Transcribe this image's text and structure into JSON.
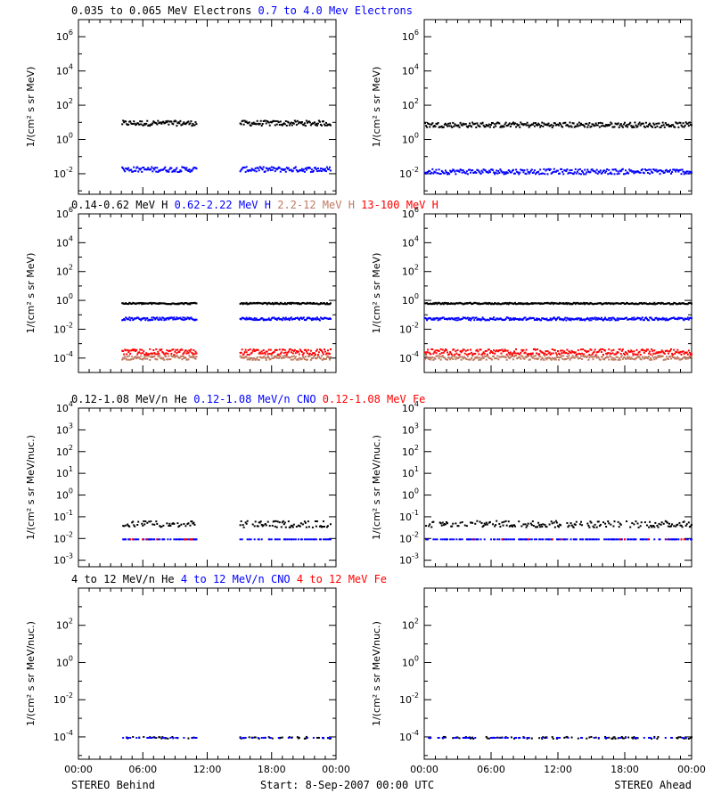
{
  "colors": {
    "black": "#000000",
    "blue": "#0000ff",
    "salmon": "#c07a60",
    "red": "#ff0000"
  },
  "rows": [
    {
      "legend": [
        {
          "text": "0.035 to 0.065 MeV Electrons",
          "color": "#000000"
        },
        {
          "text": "0.7 to 4.0 Mev Electrons",
          "color": "#0000ff"
        }
      ],
      "ylabel": "1/(cm² s sr MeV)",
      "scale": "log",
      "ylim_log": [
        -3.2,
        7
      ],
      "ticks": [
        {
          "base": "10",
          "exp": "6",
          "v": 6
        },
        {
          "base": "10",
          "exp": "4",
          "v": 4
        },
        {
          "base": "10",
          "exp": "2",
          "v": 2
        },
        {
          "base": "10",
          "exp": "0",
          "v": 0
        },
        {
          "base": "10",
          "exp": "-2",
          "v": -2
        }
      ]
    },
    {
      "legend": [
        {
          "text": "0.14-0.62 MeV H",
          "color": "#000000"
        },
        {
          "text": "0.62-2.22 MeV H",
          "color": "#0000ff"
        },
        {
          "text": "2.2-12 MeV H",
          "color": "#c07a60"
        },
        {
          "text": "13-100 MeV H",
          "color": "#ff0000"
        }
      ],
      "ylabel": "1/(cm² s sr MeV)",
      "scale": "log",
      "ylim_log": [
        -5,
        6
      ],
      "ticks": [
        {
          "base": "10",
          "exp": "6",
          "v": 6
        },
        {
          "base": "10",
          "exp": "4",
          "v": 4
        },
        {
          "base": "10",
          "exp": "2",
          "v": 2
        },
        {
          "base": "10",
          "exp": "0",
          "v": 0
        },
        {
          "base": "10",
          "exp": "-2",
          "v": -2
        },
        {
          "base": "10",
          "exp": "-4",
          "v": -4
        }
      ]
    },
    {
      "legend": [
        {
          "text": "0.12-1.08 MeV/n He",
          "color": "#000000"
        },
        {
          "text": "0.12-1.08 MeV/n CNO",
          "color": "#0000ff"
        },
        {
          "text": "0.12-1.08 MeV Fe",
          "color": "#ff0000"
        }
      ],
      "ylabel": "1/(cm² s sr MeV/nuc.)",
      "scale": "log",
      "ylim_log": [
        -3.3,
        4
      ],
      "ticks": [
        {
          "base": "10",
          "exp": "4",
          "v": 4
        },
        {
          "base": "10",
          "exp": "3",
          "v": 3
        },
        {
          "base": "10",
          "exp": "2",
          "v": 2
        },
        {
          "base": "10",
          "exp": "1",
          "v": 1
        },
        {
          "base": "10",
          "exp": "0",
          "v": 0
        },
        {
          "base": "10",
          "exp": "-1",
          "v": -1
        },
        {
          "base": "10",
          "exp": "-2",
          "v": -2
        },
        {
          "base": "10",
          "exp": "-3",
          "v": -3
        }
      ]
    },
    {
      "legend": [
        {
          "text": "4 to 12 MeV/n He",
          "color": "#000000"
        },
        {
          "text": "4 to 12 MeV/n CNO",
          "color": "#0000ff"
        },
        {
          "text": "4 to 12 MeV Fe",
          "color": "#ff0000"
        }
      ],
      "ylabel": "1/(cm² s sr MeV/nuc.)",
      "scale": "log",
      "ylim_log": [
        -5.2,
        4
      ],
      "ticks": [
        {
          "base": "10",
          "exp": "2",
          "v": 2
        },
        {
          "base": "10",
          "exp": "0",
          "v": 0
        },
        {
          "base": "10",
          "exp": "-2",
          "v": -2
        },
        {
          "base": "10",
          "exp": "-4",
          "v": -4
        }
      ]
    }
  ],
  "xaxis": {
    "ticks": [
      "00:00",
      "06:00",
      "12:00",
      "18:00",
      "00:00"
    ],
    "hours": [
      0,
      6,
      12,
      18,
      24
    ],
    "minor_every_hours": 1
  },
  "footer": {
    "left": "STEREO Behind",
    "center": "Start:  8-Sep-2007 00:00 UTC",
    "right": "STEREO Ahead"
  },
  "chart_data": [
    {
      "type": "scatter",
      "panel": "row1-behind",
      "xunit": "hours",
      "ylog": true,
      "series": [
        {
          "name": "0.035 to 0.065 MeV Electrons",
          "color": "#000000",
          "level": 10,
          "spread": 0.15,
          "coverage": [
            [
              4,
              11
            ],
            [
              15,
              23.5
            ]
          ]
        },
        {
          "name": "0.7 to 4.0 Mev Electrons",
          "color": "#0000ff",
          "level": 0.02,
          "spread": 0.15,
          "coverage": [
            [
              4,
              11
            ],
            [
              15,
              23.5
            ]
          ]
        }
      ]
    },
    {
      "type": "scatter",
      "panel": "row1-ahead",
      "xunit": "hours",
      "ylog": true,
      "series": [
        {
          "name": "0.035 to 0.065 MeV Electrons",
          "color": "#000000",
          "level": 8,
          "spread": 0.15,
          "coverage": [
            [
              0,
              24
            ]
          ]
        },
        {
          "name": "0.7 to 4.0 Mev Electrons",
          "color": "#0000ff",
          "level": 0.015,
          "spread": 0.15,
          "coverage": [
            [
              0,
              24
            ]
          ]
        }
      ]
    },
    {
      "type": "scatter",
      "panel": "row2-behind",
      "xunit": "hours",
      "ylog": true,
      "series": [
        {
          "name": "0.14-0.62 MeV H",
          "color": "#000000",
          "level": 0.7,
          "spread": 0.05,
          "coverage": [
            [
              4,
              11
            ],
            [
              15,
              23.5
            ]
          ]
        },
        {
          "name": "0.62-2.22 MeV H",
          "color": "#0000ff",
          "level": 0.06,
          "spread": 0.1,
          "coverage": [
            [
              4,
              11
            ],
            [
              15,
              23.5
            ]
          ]
        },
        {
          "name": "2.2-12 MeV H",
          "color": "#c07a60",
          "level": 0.00012,
          "spread": 0.15,
          "coverage": [
            [
              4,
              11
            ],
            [
              15,
              23.5
            ]
          ]
        },
        {
          "name": "13-100 MeV H",
          "color": "#ff0000",
          "level": 0.0003,
          "spread": 0.2,
          "coverage": [
            [
              4,
              11
            ],
            [
              15,
              23.5
            ]
          ]
        }
      ]
    },
    {
      "type": "scatter",
      "panel": "row2-ahead",
      "xunit": "hours",
      "ylog": true,
      "series": [
        {
          "name": "0.14-0.62 MeV H",
          "color": "#000000",
          "level": 0.7,
          "spread": 0.05,
          "coverage": [
            [
              0,
              24
            ]
          ]
        },
        {
          "name": "0.62-2.22 MeV H",
          "color": "#0000ff",
          "level": 0.06,
          "spread": 0.1,
          "coverage": [
            [
              0,
              24
            ]
          ]
        },
        {
          "name": "2.2-12 MeV H",
          "color": "#c07a60",
          "level": 0.00012,
          "spread": 0.15,
          "coverage": [
            [
              0,
              24
            ]
          ]
        },
        {
          "name": "13-100 MeV H",
          "color": "#ff0000",
          "level": 0.0003,
          "spread": 0.2,
          "coverage": [
            [
              0,
              24
            ]
          ]
        }
      ]
    },
    {
      "type": "scatter",
      "panel": "row3-behind",
      "xunit": "hours",
      "ylog": true,
      "series": [
        {
          "name": "0.12-1.08 MeV/n He",
          "color": "#000000",
          "level": 0.05,
          "spread": 0.15,
          "coverage": [
            [
              4,
              11
            ],
            [
              15,
              23.5
            ]
          ],
          "density": 0.7
        },
        {
          "name": "0.12-1.08 MeV/n CNO",
          "color": "#0000ff",
          "level": 0.01,
          "spread": 0,
          "coverage": [
            [
              4,
              11
            ],
            [
              15,
              23.5
            ]
          ],
          "density": 0.5
        },
        {
          "name": "0.12-1.08 MeV Fe",
          "color": "#ff0000",
          "level": 0.01,
          "spread": 0,
          "coverage": [
            [
              4,
              11
            ]
          ],
          "density": 0.1
        }
      ]
    },
    {
      "type": "scatter",
      "panel": "row3-ahead",
      "xunit": "hours",
      "ylog": true,
      "series": [
        {
          "name": "0.12-1.08 MeV/n He",
          "color": "#000000",
          "level": 0.05,
          "spread": 0.15,
          "coverage": [
            [
              0,
              24
            ]
          ],
          "density": 0.6
        },
        {
          "name": "0.12-1.08 MeV/n CNO",
          "color": "#0000ff",
          "level": 0.01,
          "spread": 0,
          "coverage": [
            [
              0,
              24
            ]
          ],
          "density": 0.5
        },
        {
          "name": "0.12-1.08 MeV Fe",
          "color": "#ff0000",
          "level": 0.01,
          "spread": 0,
          "coverage": [
            [
              0,
              24
            ]
          ],
          "density": 0.05
        }
      ]
    },
    {
      "type": "scatter",
      "panel": "row4-behind",
      "xunit": "hours",
      "ylog": true,
      "series": [
        {
          "name": "4 to 12 MeV/n He",
          "color": "#000000",
          "level": 0.0001,
          "spread": 0.05,
          "coverage": [
            [
              4,
              11
            ],
            [
              15,
              23.5
            ]
          ],
          "density": 0.3
        },
        {
          "name": "4 to 12 MeV/n CNO",
          "color": "#0000ff",
          "level": 0.0001,
          "spread": 0,
          "coverage": [
            [
              4,
              11
            ],
            [
              15,
              23.5
            ]
          ],
          "density": 0.2
        },
        {
          "name": "4 to 12 MeV Fe",
          "color": "#ff0000",
          "level": 0.0001,
          "spread": 0,
          "coverage": [],
          "density": 0
        }
      ]
    },
    {
      "type": "scatter",
      "panel": "row4-ahead",
      "xunit": "hours",
      "ylog": true,
      "series": [
        {
          "name": "4 to 12 MeV/n He",
          "color": "#000000",
          "level": 0.0001,
          "spread": 0.05,
          "coverage": [
            [
              0,
              24
            ]
          ],
          "density": 0.3
        },
        {
          "name": "4 to 12 MeV/n CNO",
          "color": "#0000ff",
          "level": 0.0001,
          "spread": 0,
          "coverage": [
            [
              0,
              24
            ]
          ],
          "density": 0.2
        },
        {
          "name": "4 to 12 MeV Fe",
          "color": "#ff0000",
          "level": 0.0001,
          "spread": 0,
          "coverage": [],
          "density": 0
        }
      ]
    }
  ]
}
